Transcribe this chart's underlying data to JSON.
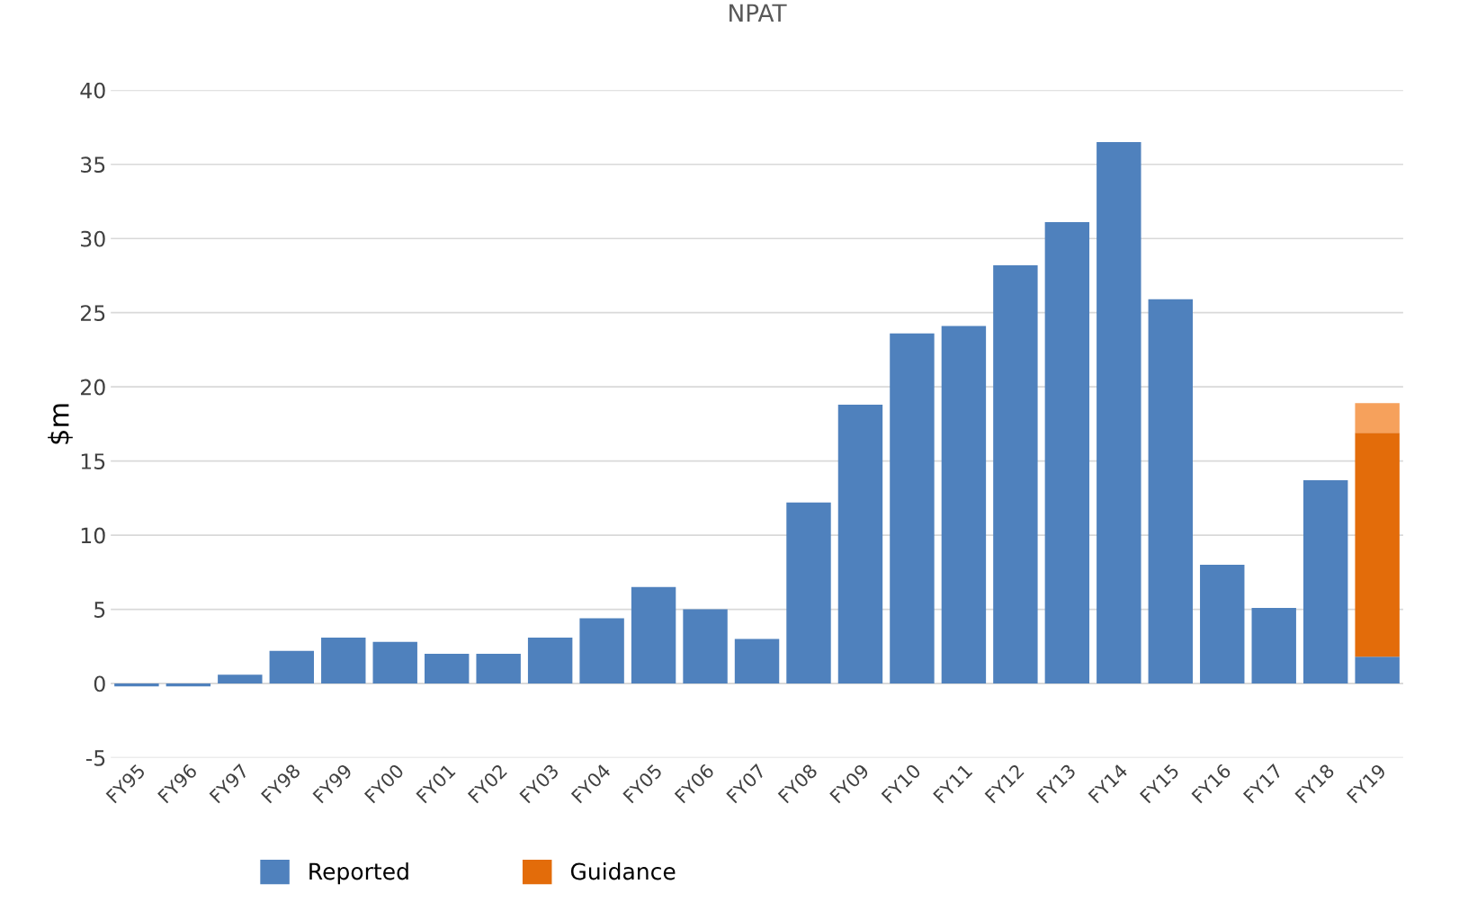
{
  "chart_data": {
    "type": "bar",
    "title": "NPAT",
    "ylabel": "$m",
    "categories": [
      "FY95",
      "FY96",
      "FY97",
      "FY98",
      "FY99",
      "FY00",
      "FY01",
      "FY02",
      "FY03",
      "FY04",
      "FY05",
      "FY06",
      "FY07",
      "FY08",
      "FY09",
      "FY10",
      "FY11",
      "FY12",
      "FY13",
      "FY14",
      "FY15",
      "FY16",
      "FY17",
      "FY18",
      "FY19"
    ],
    "stacked": true,
    "series": [
      {
        "name": "Reported",
        "color": "#4f81bd",
        "values": [
          -0.2,
          -0.2,
          0.6,
          2.2,
          3.1,
          2.8,
          2.0,
          2.0,
          3.1,
          4.4,
          6.5,
          5.0,
          3.0,
          12.2,
          18.8,
          23.6,
          24.1,
          28.2,
          31.1,
          36.5,
          25.9,
          8.0,
          5.1,
          13.7,
          1.8
        ]
      },
      {
        "name": "Guidance",
        "color": "#e36c0a",
        "values": [
          null,
          null,
          null,
          null,
          null,
          null,
          null,
          null,
          null,
          null,
          null,
          null,
          null,
          null,
          null,
          null,
          null,
          null,
          null,
          null,
          null,
          null,
          null,
          null,
          15.1
        ]
      },
      {
        "color": "#f6a15c",
        "values": [
          null,
          null,
          null,
          null,
          null,
          null,
          null,
          null,
          null,
          null,
          null,
          null,
          null,
          null,
          null,
          null,
          null,
          null,
          null,
          null,
          null,
          null,
          null,
          null,
          2.0
        ]
      }
    ],
    "ylim": [
      -5,
      40
    ],
    "yticks": [
      -5,
      0,
      5,
      10,
      15,
      20,
      25,
      30,
      35,
      40
    ],
    "grid": "y",
    "legend": "bottom"
  }
}
